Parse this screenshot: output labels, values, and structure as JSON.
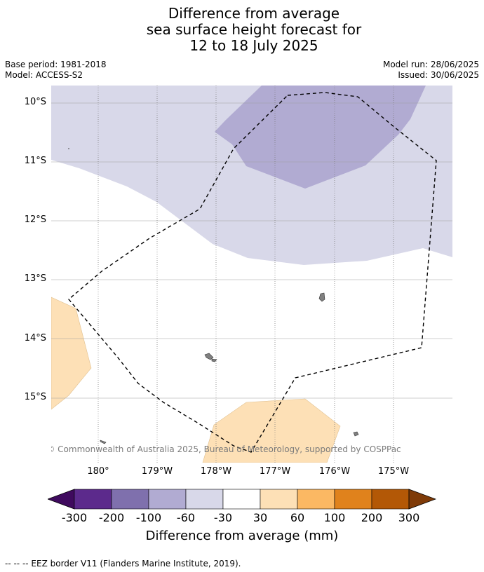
{
  "title": {
    "line1": "Difference from average",
    "line2": "sea surface height forecast for",
    "line3": "12 to 18 July 2025"
  },
  "meta": {
    "base_period": "Base period: 1981-2018",
    "model": "Model: ACCESS-S2",
    "model_run": "Model run: 28/06/2025",
    "issued": "Issued: 30/06/2025"
  },
  "map": {
    "lat_labels": [
      "10°S",
      "11°S",
      "12°S",
      "13°S",
      "14°S",
      "15°S"
    ],
    "lon_labels": [
      "180°",
      "179°W",
      "178°W",
      "177°W",
      "176°W",
      "175°W"
    ],
    "copyright": "© Commonwealth of Australia 2025, Bureau of Meteorology, supported by COSPPac",
    "colors": {
      "light_purple": "#d8d8e9",
      "mid_purple": "#b1abd2",
      "light_orange": "#fde0b6",
      "land": "#808080"
    }
  },
  "colorbar": {
    "ticks": [
      "-300",
      "-200",
      "-100",
      "-60",
      "-30",
      "30",
      "60",
      "100",
      "200",
      "300"
    ],
    "colors": [
      "#3f0a5e",
      "#5c2a8c",
      "#7f70ad",
      "#b1abd2",
      "#d8d8e9",
      "#ffffff",
      "#fde0b6",
      "#fbb863",
      "#e0821c",
      "#b35806",
      "#7f3b08"
    ],
    "title": "Difference from average (mm)"
  },
  "footnote": "--  --  -- EEZ border V11 (Flanders Marine Institute, 2019)."
}
